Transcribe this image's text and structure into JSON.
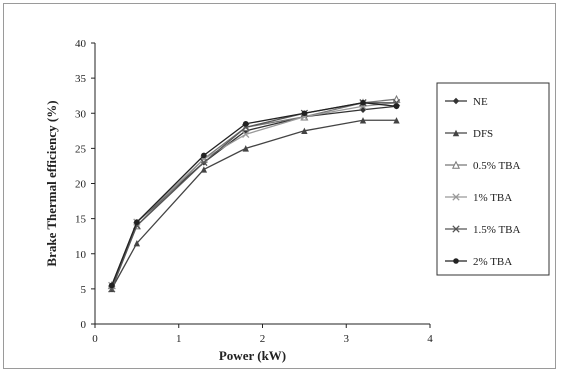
{
  "chart_data": {
    "type": "line",
    "title": "",
    "xlabel": "Power (kW)",
    "ylabel": "Brake Thermal efficiency (%)",
    "xlim": [
      0,
      4
    ],
    "ylim": [
      0,
      40
    ],
    "xticks": [
      0,
      1,
      2,
      3,
      4
    ],
    "yticks": [
      0,
      5,
      10,
      15,
      20,
      25,
      30,
      35,
      40
    ],
    "grid": false,
    "legend_position": "right",
    "x": [
      0.2,
      0.5,
      1.3,
      1.8,
      2.5,
      3.2,
      3.6
    ],
    "series": [
      {
        "name": "NE",
        "values": [
          5.5,
          14.5,
          23.0,
          27.5,
          29.5,
          30.5,
          31.0
        ],
        "marker": "diamond",
        "color": "#333333"
      },
      {
        "name": "DFS",
        "values": [
          5.0,
          11.5,
          22.0,
          25.0,
          27.5,
          29.0,
          29.0
        ],
        "marker": "triangle",
        "color": "#444444"
      },
      {
        "name": "0.5% TBA",
        "values": [
          5.5,
          14.0,
          23.5,
          28.0,
          29.5,
          31.5,
          32.0
        ],
        "marker": "triangle-open",
        "color": "#777777"
      },
      {
        "name": "1% TBA",
        "values": [
          5.5,
          14.5,
          23.5,
          27.0,
          29.5,
          31.0,
          31.5
        ],
        "marker": "x",
        "color": "#999999"
      },
      {
        "name": "1.5% TBA",
        "values": [
          5.0,
          14.0,
          23.0,
          28.0,
          30.0,
          31.5,
          31.5
        ],
        "marker": "x",
        "color": "#555555"
      },
      {
        "name": "2% TBA",
        "values": [
          5.5,
          14.5,
          24.0,
          28.5,
          30.0,
          31.5,
          31.0
        ],
        "marker": "circle",
        "color": "#222222"
      }
    ]
  }
}
